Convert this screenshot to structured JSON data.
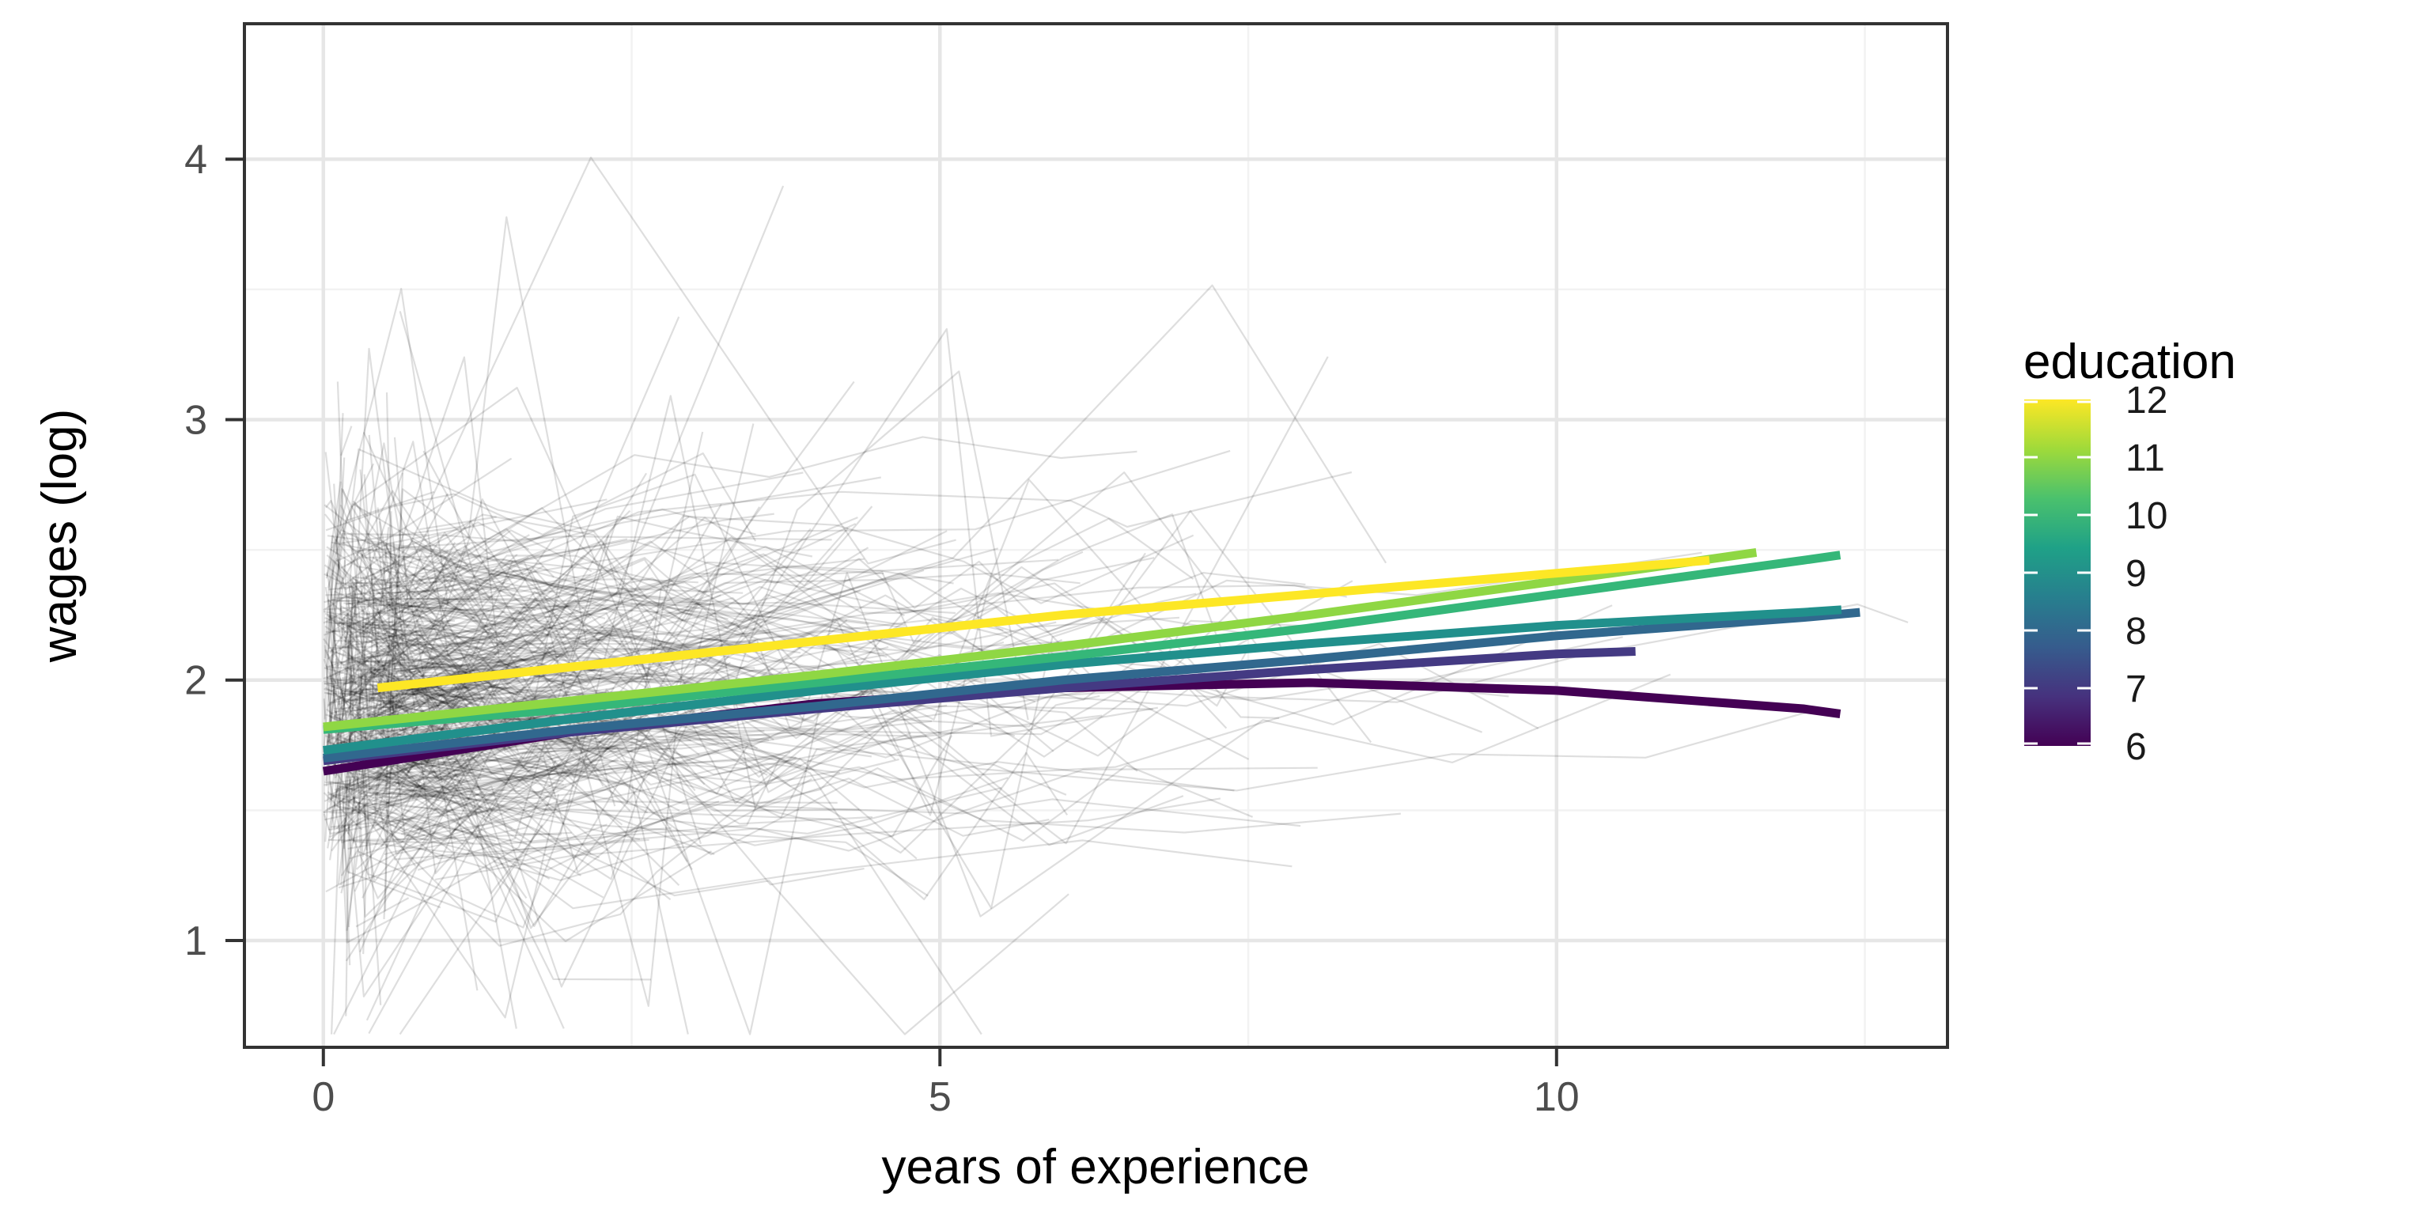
{
  "figure": {
    "kind": "statistical line chart (ggplot style)",
    "background": "#ffffff"
  },
  "chart_data": {
    "type": "line",
    "title": "",
    "xlabel": "years of experience",
    "ylabel": "wages (log)",
    "x_ticks": [
      "0",
      "5",
      "10"
    ],
    "x_tick_values": [
      0,
      5,
      10
    ],
    "y_ticks": [
      "1",
      "2",
      "3",
      "4"
    ],
    "y_tick_values": [
      1,
      2,
      3,
      4
    ],
    "x_minor_ticks": [
      2.5,
      7.5,
      12.5
    ],
    "y_minor_ticks": [
      1.5,
      2.5,
      3.5
    ],
    "xlim": [
      -0.64,
      13.17
    ],
    "ylim": [
      0.59,
      4.52
    ],
    "grid": true,
    "panel": {
      "background": "#ffffff",
      "border_color": "#333333",
      "major_grid_color": "#e6e6e6",
      "minor_grid_color": "#f2f2f2"
    },
    "axis_style": {
      "tick_color": "#333333",
      "tick_label_color": "#4d4d4d",
      "title_color": "#000000"
    },
    "legend": {
      "title": "education",
      "type": "colorbar",
      "position": "right",
      "labels": [
        "12",
        "11",
        "10",
        "9",
        "8",
        "7",
        "6"
      ],
      "label_values": [
        12,
        11,
        10,
        9,
        8,
        7,
        6
      ],
      "range": [
        6,
        12
      ],
      "gradient_bottom_to_top": [
        "#440154",
        "#46327e",
        "#365c8d",
        "#277f8e",
        "#1fa187",
        "#4ac16d",
        "#9fda3a",
        "#fde725"
      ],
      "tick_color": "#ffffff"
    },
    "series": [
      {
        "name": "education 6",
        "education": 6,
        "color": "#440154",
        "points": [
          [
            0,
            1.65
          ],
          [
            2,
            1.8
          ],
          [
            4,
            1.91
          ],
          [
            6,
            1.97
          ],
          [
            8,
            1.99
          ],
          [
            10,
            1.96
          ],
          [
            12,
            1.89
          ],
          [
            12.3,
            1.87
          ]
        ]
      },
      {
        "name": "education 7",
        "education": 7,
        "color": "#443a83",
        "points": [
          [
            0,
            1.69
          ],
          [
            2,
            1.8
          ],
          [
            4,
            1.89
          ],
          [
            6,
            1.97
          ],
          [
            8,
            2.04
          ],
          [
            10,
            2.1
          ],
          [
            10.64,
            2.11
          ]
        ]
      },
      {
        "name": "education 8",
        "education": 8,
        "color": "#31688e",
        "points": [
          [
            0,
            1.7
          ],
          [
            2,
            1.81
          ],
          [
            4,
            1.9
          ],
          [
            6,
            2.0
          ],
          [
            8,
            2.08
          ],
          [
            10,
            2.17
          ],
          [
            12,
            2.24
          ],
          [
            12.46,
            2.26
          ]
        ]
      },
      {
        "name": "education 9",
        "education": 9,
        "color": "#21908c",
        "points": [
          [
            0,
            1.73
          ],
          [
            2,
            1.85
          ],
          [
            4,
            1.96
          ],
          [
            6,
            2.06
          ],
          [
            8,
            2.14
          ],
          [
            10,
            2.21
          ],
          [
            12,
            2.26
          ],
          [
            12.31,
            2.27
          ]
        ]
      },
      {
        "name": "education 10",
        "education": 10,
        "color": "#35b779",
        "points": [
          [
            0,
            1.81
          ],
          [
            2,
            1.89
          ],
          [
            4,
            1.99
          ],
          [
            6,
            2.09
          ],
          [
            8,
            2.2
          ],
          [
            10,
            2.33
          ],
          [
            12,
            2.46
          ],
          [
            12.3,
            2.48
          ]
        ]
      },
      {
        "name": "education 11",
        "education": 11,
        "color": "#8fd744",
        "points": [
          [
            0,
            1.82
          ],
          [
            2,
            1.92
          ],
          [
            4,
            2.02
          ],
          [
            6,
            2.13
          ],
          [
            8,
            2.25
          ],
          [
            10,
            2.38
          ],
          [
            11.62,
            2.49
          ]
        ]
      },
      {
        "name": "education 12",
        "education": 12,
        "color": "#fde725",
        "points": [
          [
            0.44,
            1.97
          ],
          [
            2,
            2.05
          ],
          [
            4,
            2.15
          ],
          [
            6,
            2.25
          ],
          [
            8,
            2.33
          ],
          [
            10,
            2.41
          ],
          [
            11.24,
            2.46
          ]
        ]
      }
    ],
    "smooth_line_width": 11,
    "background_trajectories": {
      "description": "faint black line per individual subject (wage trajectory cloud)",
      "count": 570,
      "color": "#000000",
      "opacity": 0.13,
      "stroke_width": 2.2,
      "seed": 20
    }
  }
}
